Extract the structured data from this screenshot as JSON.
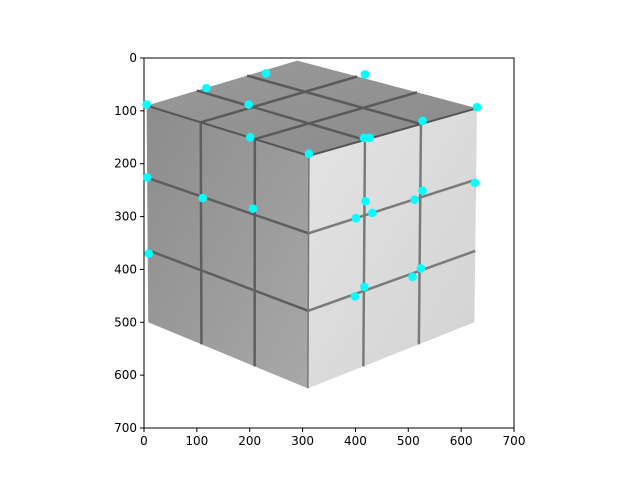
{
  "chart_data": {
    "type": "scatter",
    "title": "",
    "xlabel": "",
    "ylabel": "",
    "xlim": [
      0,
      700
    ],
    "ylim": [
      700,
      0
    ],
    "y_inverted": true,
    "grid": false,
    "xticks": [
      0,
      100,
      200,
      300,
      400,
      500,
      600,
      700
    ],
    "yticks": [
      0,
      100,
      200,
      300,
      400,
      500,
      600,
      700
    ],
    "marker_color": "#00ffff",
    "background_image": "grayscale-rubiks-cube-render",
    "points": [
      {
        "x": 231,
        "y": 29
      },
      {
        "x": 418,
        "y": 31
      },
      {
        "x": 118,
        "y": 57
      },
      {
        "x": 5,
        "y": 88
      },
      {
        "x": 198,
        "y": 88
      },
      {
        "x": 630,
        "y": 93
      },
      {
        "x": 527,
        "y": 119
      },
      {
        "x": 201,
        "y": 150
      },
      {
        "x": 416,
        "y": 151
      },
      {
        "x": 427,
        "y": 151
      },
      {
        "x": 312,
        "y": 181
      },
      {
        "x": 6,
        "y": 226
      },
      {
        "x": 626,
        "y": 236
      },
      {
        "x": 527,
        "y": 251
      },
      {
        "x": 111,
        "y": 265
      },
      {
        "x": 512,
        "y": 268
      },
      {
        "x": 419,
        "y": 271
      },
      {
        "x": 206,
        "y": 285
      },
      {
        "x": 432,
        "y": 293
      },
      {
        "x": 401,
        "y": 303
      },
      {
        "x": 9,
        "y": 370
      },
      {
        "x": 524,
        "y": 398
      },
      {
        "x": 508,
        "y": 414
      },
      {
        "x": 417,
        "y": 433
      },
      {
        "x": 399,
        "y": 451
      }
    ]
  }
}
